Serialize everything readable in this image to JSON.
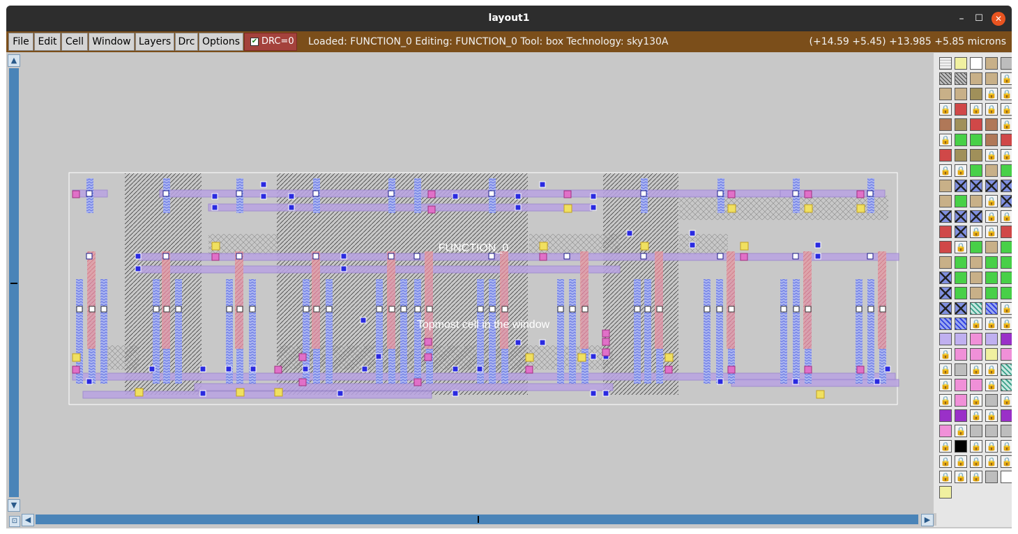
{
  "window": {
    "title": "layout1",
    "min_label": "–",
    "max_label": "☐",
    "close_label": "✕"
  },
  "menu": {
    "items": [
      {
        "label": "File"
      },
      {
        "label": "Edit"
      },
      {
        "label": "Cell"
      },
      {
        "label": "Window"
      },
      {
        "label": "Layers"
      },
      {
        "label": "Drc"
      },
      {
        "label": "Options"
      }
    ],
    "drc_label": "DRC=0",
    "drc_checked": true
  },
  "status": {
    "text": "Loaded: FUNCTION_0 Editing: FUNCTION_0 Tool: box  Technology: sky130A",
    "coords": "(+14.59 +5.45) +13.985 +5.85 microns"
  },
  "canvas": {
    "cell_name": "FUNCTION_0",
    "cell_caption": "Topmost cell in the window"
  },
  "scroll": {
    "up": "▲",
    "down": "▼",
    "left": "◀",
    "right": "▶",
    "zoom": "⊡"
  },
  "colors": {
    "titlebar": "#2d2d2d",
    "menubar": "#7b4e1a",
    "drc": "#a4423c",
    "scrollbar": "#4a84b8",
    "canvas": "#c8c8c8",
    "poly": "#d08080",
    "local_interconnect": "#9c9ce8",
    "metal1": "#b8a0e0",
    "diffusion_hatch": "#5a5a5a",
    "via_pink": "#e070c0",
    "via_yellow": "#e0d040",
    "contact_blue": "#2020e0"
  },
  "palette": {
    "rows": 29,
    "cols": 5,
    "kinds": [
      "grid",
      "yellow",
      "white",
      "tan",
      "gray",
      "hatch",
      "hatch",
      "tan",
      "tan",
      "lock",
      "tan",
      "tan",
      "olive",
      "lock",
      "lock",
      "lock",
      "red",
      "lock",
      "lock",
      "lock",
      "brown",
      "olive",
      "red",
      "brown",
      "lock",
      "lock",
      "green",
      "green",
      "brown",
      "red",
      "red",
      "olive",
      "olive",
      "lock",
      "lock",
      "lock",
      "lock",
      "green",
      "tan",
      "green",
      "tan",
      "xbox",
      "xbox",
      "xbox",
      "xbox",
      "tan",
      "green",
      "tan",
      "lock",
      "xbox",
      "xbox",
      "xbox",
      "xbox",
      "lock",
      "lock",
      "red",
      "xbox",
      "lock",
      "lock",
      "red",
      "red",
      "lock",
      "green",
      "tan",
      "green",
      "tan",
      "green",
      "tan",
      "green",
      "green",
      "xbox",
      "green",
      "tan",
      "green",
      "green",
      "xbox",
      "green",
      "tan",
      "green",
      "green",
      "xbox",
      "xbox",
      "teal",
      "blue",
      "lock",
      "blue",
      "blue",
      "lock",
      "lock",
      "lock",
      "lav",
      "lav",
      "pink",
      "lav",
      "purple",
      "lock",
      "pink",
      "pink",
      "yellow",
      "pink",
      "lock",
      "gray",
      "lock",
      "lock",
      "teal",
      "lock",
      "pink",
      "pink",
      "lock",
      "teal",
      "lock",
      "pink",
      "lock",
      "gray",
      "lock",
      "purple",
      "purple",
      "lock",
      "lock",
      "purple",
      "pink",
      "lock",
      "gray",
      "gray",
      "gray",
      "lock",
      "black",
      "lock",
      "lock",
      "lock",
      "lock",
      "lock",
      "lock",
      "lock",
      "lock",
      "lock",
      "lock",
      "lock",
      "gray",
      "white",
      "yellow"
    ]
  }
}
